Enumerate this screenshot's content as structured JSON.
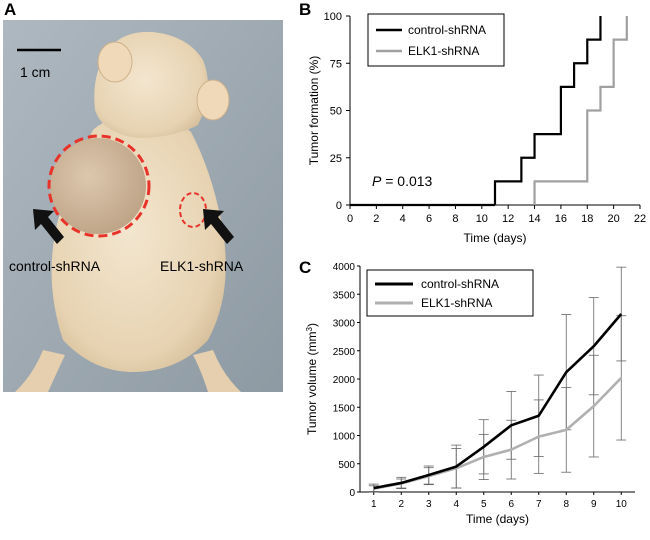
{
  "figure": {
    "panel_a_label": "A",
    "panel_b_label": "B",
    "panel_c_label": "C"
  },
  "photo": {
    "scale_bar_label": "1 cm",
    "left_arrow_label": "control-shRNA",
    "right_arrow_label": "ELK1-shRNA",
    "highlight_color": "#e8332a"
  },
  "chart_data": [
    {
      "type": "line",
      "step": true,
      "title": "",
      "xlabel": "Time (days)",
      "ylabel": "Tumor formation (%)",
      "xlim": [
        0,
        22
      ],
      "ylim": [
        0,
        100
      ],
      "xticks": [
        0,
        2,
        4,
        6,
        8,
        10,
        12,
        14,
        16,
        18,
        20,
        22
      ],
      "yticks": [
        0,
        25,
        50,
        75,
        100
      ],
      "annotation": {
        "label": "P",
        "text": " = 0.013"
      },
      "legend_position": "top-left",
      "series": [
        {
          "name": "control-shRNA",
          "color": "#000000",
          "x": [
            11,
            13,
            14,
            16,
            17,
            18,
            19
          ],
          "y": [
            12.5,
            25,
            37.5,
            62.5,
            75,
            87.5,
            100
          ]
        },
        {
          "name": "ELK1-shRNA",
          "color": "#a0a0a0",
          "x": [
            14,
            18,
            19,
            20,
            21
          ],
          "y": [
            12.5,
            50,
            62.5,
            87.5,
            100
          ]
        }
      ]
    },
    {
      "type": "line",
      "title": "",
      "xlabel": "Time (days)",
      "ylabel": "Tumor volume (mm³)",
      "ylabel_main": "Tumor volume (mm",
      "ylabel_sup": "3",
      "ylabel_end": ")",
      "x": [
        1,
        2,
        3,
        4,
        5,
        6,
        7,
        8,
        9,
        10
      ],
      "xlim": [
        0.5,
        10.5
      ],
      "ylim": [
        0,
        4000
      ],
      "yticks": [
        0,
        500,
        1000,
        1500,
        2000,
        2500,
        3000,
        3500,
        4000
      ],
      "legend_position": "top-left",
      "series": [
        {
          "name": "control-shRNA",
          "color": "#000000",
          "values": [
            70,
            160,
            300,
            450,
            800,
            1180,
            1350,
            2120,
            2580,
            3150
          ],
          "errors": [
            70,
            100,
            160,
            380,
            480,
            600,
            720,
            1020,
            860,
            830
          ]
        },
        {
          "name": "ELK1-shRNA",
          "color": "#b0b0b0",
          "values": [
            60,
            150,
            280,
            420,
            620,
            750,
            980,
            1100,
            1520,
            2020
          ],
          "errors": [
            50,
            80,
            150,
            350,
            400,
            520,
            650,
            750,
            900,
            1100
          ]
        }
      ]
    }
  ]
}
